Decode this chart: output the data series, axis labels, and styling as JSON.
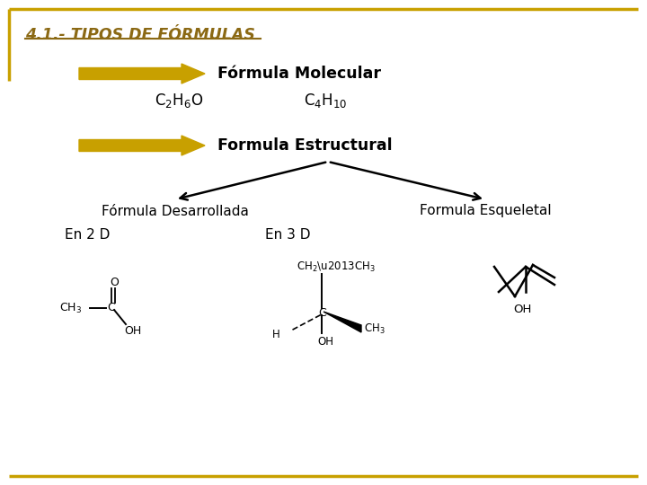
{
  "title": "4.1.- TIPOS DE FORMULAS",
  "title_color": "#8B6914",
  "background_color": "#ffffff",
  "border_color": "#C8A000",
  "arrow_color": "#C8A000",
  "text_color": "#000000",
  "formula_molecular_label": "Fórmula Molecular",
  "formula_estructural_label": "Formula Estructural",
  "formula_desarrollada_label": "Fórmula Desarrollada",
  "formula_esqueletal_label": "Formula Esqueletal",
  "en2d_label": "En 2 D",
  "en3d_label": "En 3 D"
}
